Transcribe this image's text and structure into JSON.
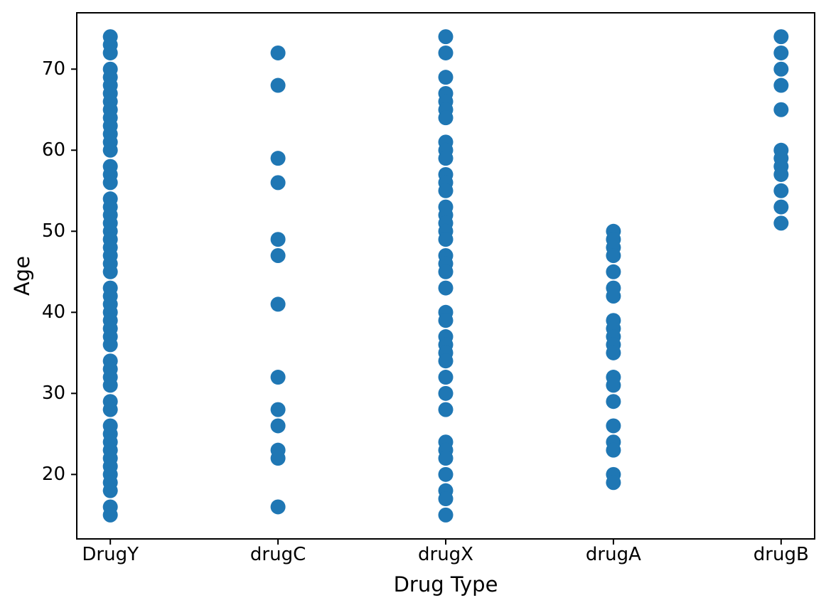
{
  "chart_data": {
    "type": "scatter",
    "title": "",
    "xlabel": "Drug Type",
    "ylabel": "Age",
    "categories": [
      "DrugY",
      "drugC",
      "drugX",
      "drugA",
      "drugB"
    ],
    "series": [
      {
        "name": "DrugY",
        "ages": [
          74,
          73,
          72,
          70,
          69,
          68,
          67,
          66,
          65,
          64,
          63,
          62,
          61,
          60,
          58,
          57,
          56,
          54,
          53,
          52,
          51,
          50,
          49,
          48,
          47,
          46,
          45,
          43,
          42,
          41,
          40,
          39,
          38,
          37,
          36,
          34,
          33,
          32,
          31,
          29,
          28,
          26,
          25,
          24,
          23,
          22,
          21,
          20,
          19,
          18,
          16,
          15
        ]
      },
      {
        "name": "drugC",
        "ages": [
          72,
          68,
          59,
          56,
          49,
          47,
          41,
          32,
          28,
          26,
          23,
          22,
          16
        ]
      },
      {
        "name": "drugX",
        "ages": [
          74,
          72,
          69,
          67,
          66,
          65,
          64,
          61,
          60,
          59,
          57,
          56,
          55,
          53,
          52,
          51,
          50,
          49,
          47,
          46,
          45,
          43,
          40,
          39,
          37,
          36,
          35,
          34,
          32,
          30,
          28,
          24,
          23,
          22,
          20,
          18,
          17,
          15
        ]
      },
      {
        "name": "drugA",
        "ages": [
          50,
          49,
          48,
          47,
          45,
          43,
          42,
          39,
          38,
          37,
          36,
          35,
          32,
          31,
          29,
          26,
          24,
          23,
          20,
          19
        ]
      },
      {
        "name": "drugB",
        "ages": [
          74,
          72,
          70,
          68,
          65,
          60,
          59,
          58,
          57,
          55,
          53,
          51
        ]
      }
    ],
    "y_ticks": [
      20,
      30,
      40,
      50,
      60,
      70
    ],
    "ylim": [
      12.05,
      76.95
    ],
    "xlim_padding": 0.2,
    "grid": false,
    "legend": "none",
    "marker_color": "#1f77b4",
    "marker_radius": 10.5,
    "spine_color": "#000000",
    "text_color": "#000000"
  }
}
